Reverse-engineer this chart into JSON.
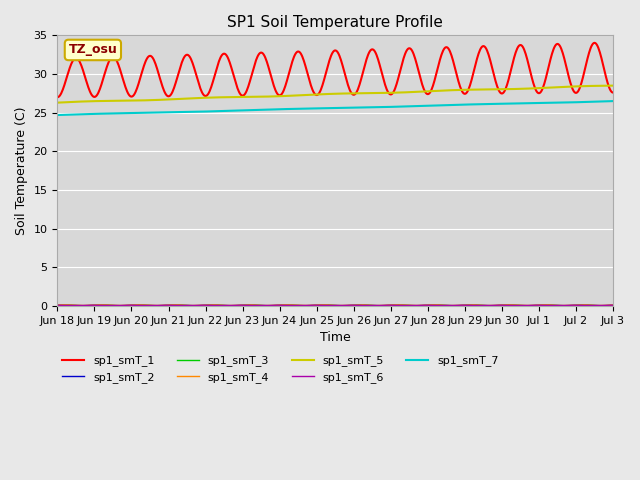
{
  "title": "SP1 Soil Temperature Profile",
  "xlabel": "Time",
  "ylabel": "Soil Temperature (C)",
  "ylim": [
    0,
    35
  ],
  "yticks": [
    0,
    5,
    10,
    15,
    20,
    25,
    30,
    35
  ],
  "tz_label": "TZ_osu",
  "background_color": "#e8e8e8",
  "plot_bg_color": "#d8d8d8",
  "x_tick_labels": [
    "Jun 18",
    "Jun 19",
    "Jun 20",
    "Jun 21",
    "Jun 22",
    "Jun 23",
    "Jun 24",
    "Jun 25",
    "Jun 26",
    "Jun 27",
    "Jun 28",
    "Jun 29",
    "Jun 30",
    "Jul 1",
    "Jul 2",
    "Jul 3"
  ],
  "n_days": 15,
  "series_names": [
    "sp1_smT_1",
    "sp1_smT_2",
    "sp1_smT_3",
    "sp1_smT_4",
    "sp1_smT_5",
    "sp1_smT_6",
    "sp1_smT_7"
  ],
  "series_colors": [
    "#ff0000",
    "#0000cc",
    "#00cc00",
    "#ff8800",
    "#cccc00",
    "#aa00aa",
    "#00cccc"
  ],
  "series_lw": [
    1.5,
    1.0,
    1.0,
    1.0,
    1.5,
    1.0,
    1.5
  ]
}
